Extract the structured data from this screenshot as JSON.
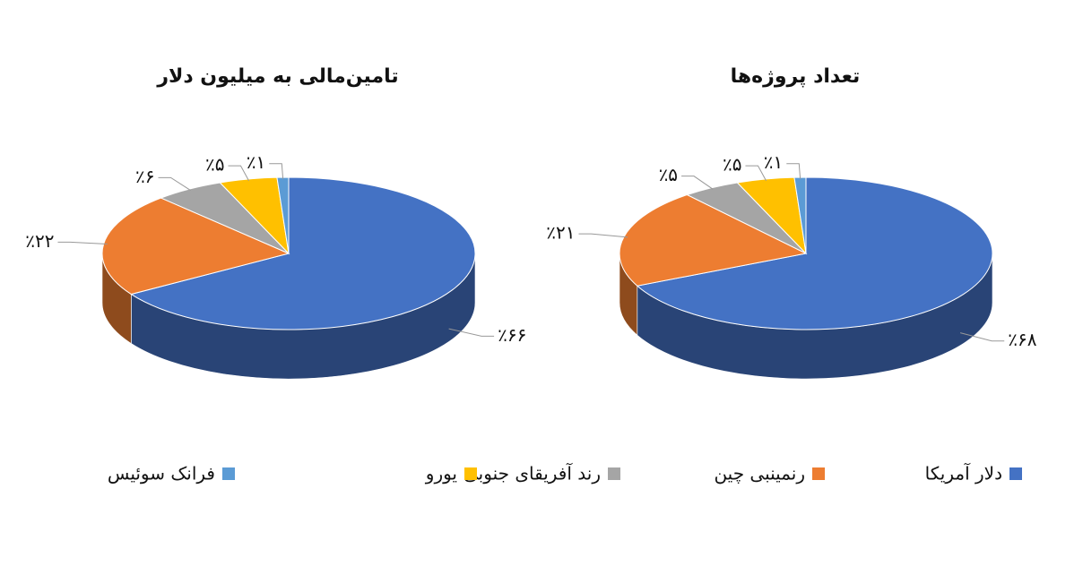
{
  "chart_data": [
    {
      "type": "pie",
      "title": "تامین‌مالی به میلیون دلار",
      "values": [
        66,
        22,
        6,
        5,
        1
      ],
      "value_labels": [
        "٪۶۶",
        "٪۲۲",
        "٪۶",
        "٪۵",
        "٪۱"
      ]
    },
    {
      "type": "pie",
      "title": "تعداد پروژه‌ها",
      "values": [
        68,
        21,
        5,
        5,
        1
      ],
      "value_labels": [
        "٪۶۸",
        "٪۲۱",
        "٪۵",
        "٪۵",
        "٪۱"
      ]
    }
  ],
  "legend": {
    "categories": [
      "دلار آمریکا",
      "رنمینبی چین",
      "رند آفریقای جنوبی",
      "یورو",
      "فرانک سوئیس"
    ],
    "colors": [
      "#4472c4",
      "#ed7d31",
      "#a5a5a5",
      "#ffc000",
      "#5b9bd5"
    ]
  }
}
